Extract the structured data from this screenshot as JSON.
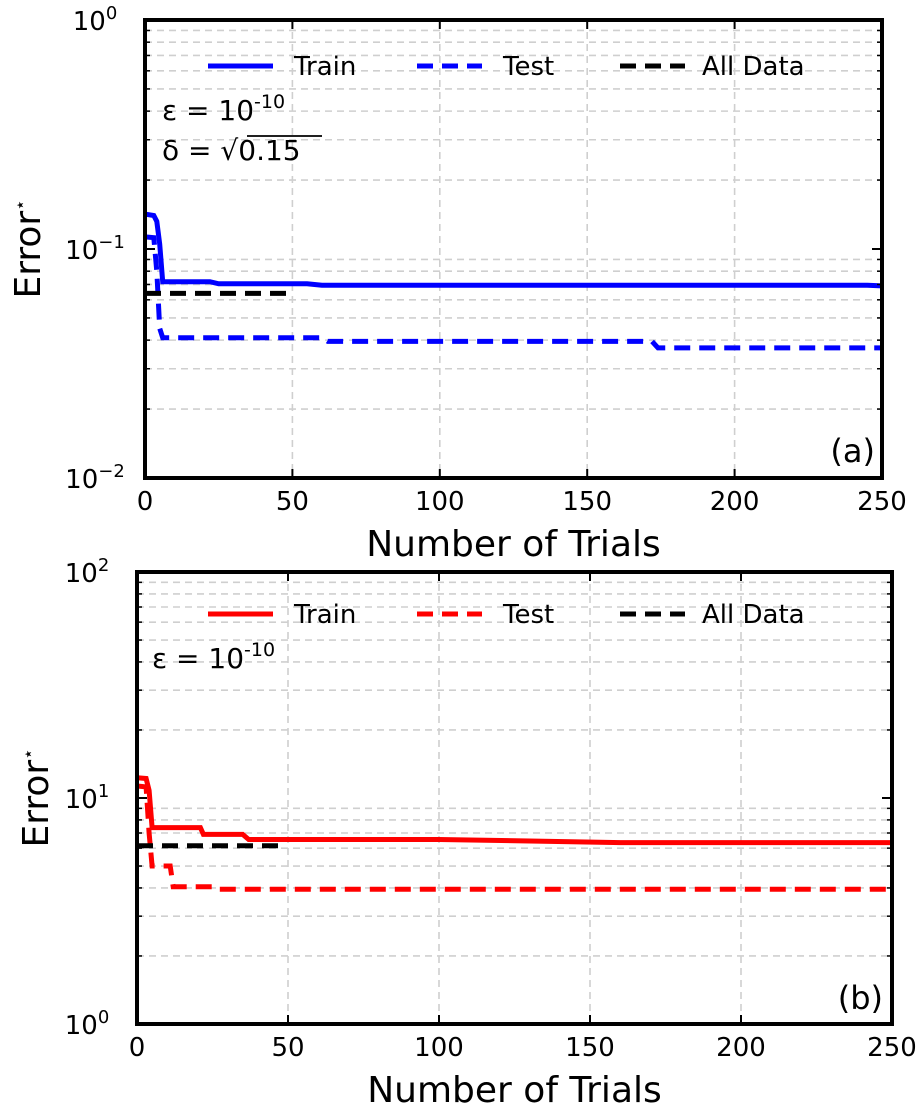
{
  "chart_data": [
    {
      "type": "line",
      "panel_label": "(a)",
      "xlabel": "Number of Trials",
      "ylabel": "Error",
      "ylabel_sup": "⋆",
      "yscale": "log",
      "xlim": [
        0,
        250
      ],
      "ylim": [
        0.01,
        1
      ],
      "xticks": [
        0,
        50,
        100,
        150,
        200,
        250
      ],
      "ytick_labels": [
        {
          "value": 0.01,
          "base": "10",
          "exp": "−2"
        },
        {
          "value": 0.1,
          "base": "10",
          "exp": "−1"
        },
        {
          "value": 1,
          "base": "10",
          "exp": "0"
        }
      ],
      "grid": true,
      "legend": {
        "placement": "top",
        "entries": [
          "Train",
          "Test",
          "All Data"
        ]
      },
      "annotations": [
        {
          "id": "epsilon",
          "prefix": "ε = 10",
          "exp": "-10"
        },
        {
          "id": "delta",
          "prefix": "δ = ",
          "radical": "√",
          "radicand": "0.15"
        }
      ],
      "series": [
        {
          "name": "Train",
          "color": "#0000ff",
          "dash": "solid",
          "x": [
            0,
            3,
            4,
            5,
            6,
            22,
            25,
            55,
            60,
            245,
            250
          ],
          "y": [
            0.142,
            0.14,
            0.132,
            0.105,
            0.072,
            0.072,
            0.0705,
            0.0705,
            0.0695,
            0.0695,
            0.069
          ]
        },
        {
          "name": "Test",
          "color": "#0000ff",
          "dash": "dashed",
          "x": [
            0,
            3,
            4,
            5,
            6,
            60,
            62,
            172,
            174,
            250
          ],
          "y": [
            0.113,
            0.112,
            0.08,
            0.045,
            0.041,
            0.041,
            0.0395,
            0.0395,
            0.037,
            0.037
          ]
        },
        {
          "name": "All Data",
          "color": "#000000",
          "dash": "dashed",
          "x": [
            0,
            50
          ],
          "y": [
            0.064,
            0.064
          ]
        }
      ]
    },
    {
      "type": "line",
      "panel_label": "(b)",
      "xlabel": "Number of Trials",
      "ylabel": "Error",
      "ylabel_sup": "⋆",
      "yscale": "log",
      "xlim": [
        0,
        250
      ],
      "ylim": [
        1,
        100
      ],
      "xticks": [
        0,
        50,
        100,
        150,
        200,
        250
      ],
      "ytick_labels": [
        {
          "value": 1,
          "base": "10",
          "exp": "0"
        },
        {
          "value": 10,
          "base": "10",
          "exp": "1"
        },
        {
          "value": 100,
          "base": "10",
          "exp": "2"
        }
      ],
      "grid": true,
      "legend": {
        "placement": "top",
        "entries": [
          "Train",
          "Test",
          "All Data"
        ]
      },
      "annotations": [
        {
          "id": "epsilon",
          "prefix": "ε = 10",
          "exp": "-10"
        }
      ],
      "series": [
        {
          "name": "Train",
          "color": "#ff0000",
          "dash": "solid",
          "x": [
            0,
            3,
            4,
            5,
            21,
            22,
            35,
            37,
            100,
            130,
            160,
            250
          ],
          "y": [
            12.3,
            12.2,
            10.8,
            7.4,
            7.4,
            6.9,
            6.9,
            6.55,
            6.55,
            6.45,
            6.35,
            6.35
          ]
        },
        {
          "name": "Test",
          "color": "#ff0000",
          "dash": "dashed",
          "x": [
            0,
            3,
            4,
            5,
            11,
            12,
            25,
            26,
            250
          ],
          "y": [
            11.3,
            11.2,
            7.0,
            5.0,
            5.0,
            4.05,
            4.05,
            3.95,
            3.95
          ]
        },
        {
          "name": "All Data",
          "color": "#000000",
          "dash": "dashed",
          "x": [
            0,
            48
          ],
          "y": [
            6.15,
            6.15
          ]
        }
      ]
    }
  ]
}
